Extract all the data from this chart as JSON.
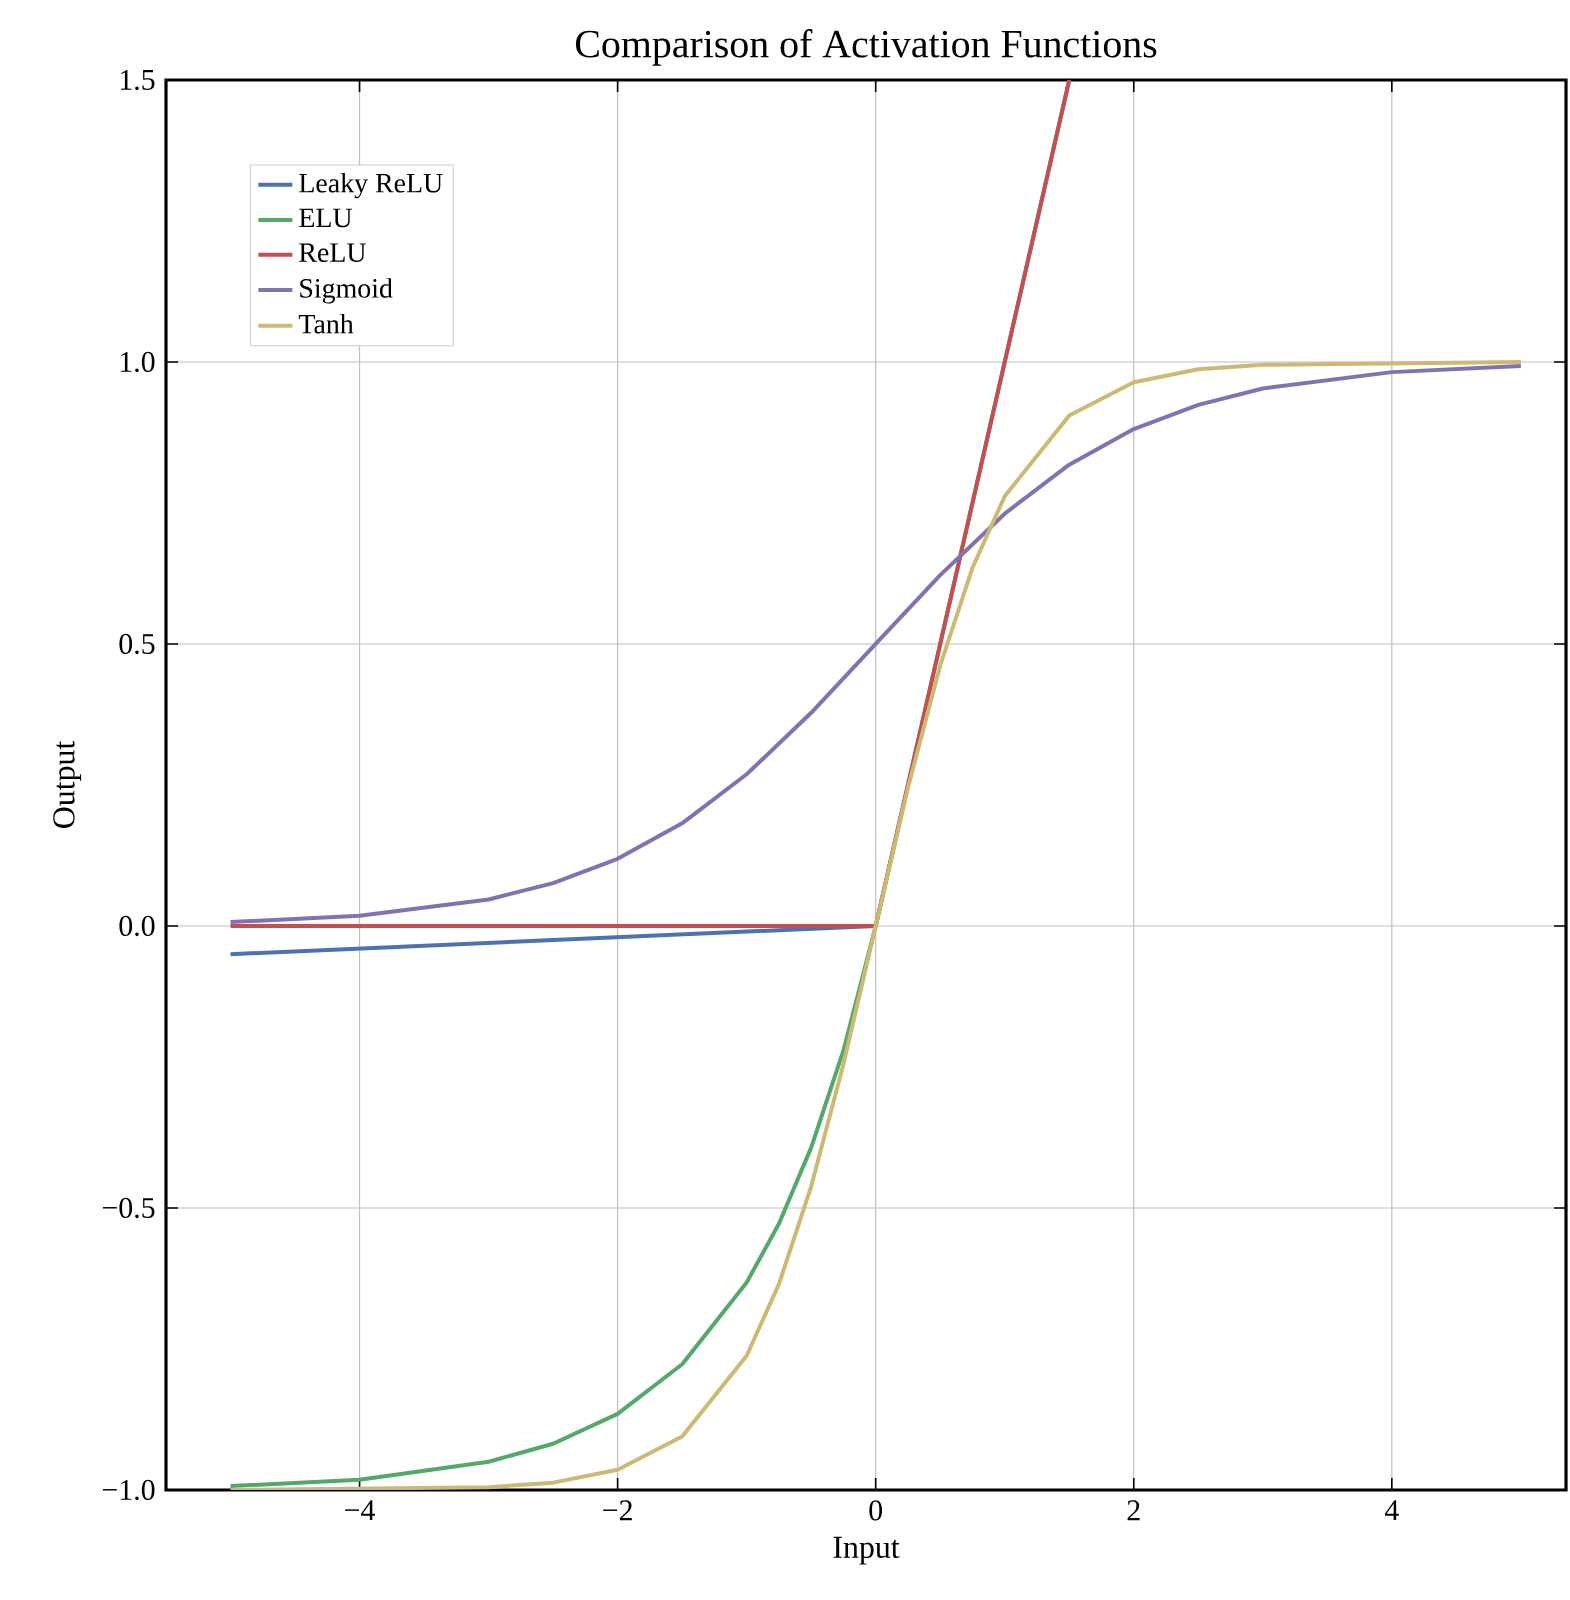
{
  "chart_data": {
    "type": "line",
    "title": "Comparison of Activation Functions",
    "xlabel": "Input",
    "ylabel": "Output",
    "xlim": [
      -5.5,
      5.35
    ],
    "ylim": [
      -1.0,
      1.5
    ],
    "xticks": [
      {
        "value": -4,
        "label": "−4"
      },
      {
        "value": -2,
        "label": "−2"
      },
      0,
      2,
      4
    ],
    "yticks": [
      {
        "value": -1.0,
        "label": "−1.0"
      },
      {
        "value": -0.5,
        "label": "−0.5"
      },
      {
        "value": 0.0,
        "label": "0.0"
      },
      0.5,
      {
        "value": 1.0,
        "label": "1.0"
      },
      1.5
    ],
    "grid": true,
    "legend": "top left",
    "series": [
      {
        "name": "Leaky ReLU",
        "color": "#4c72b0",
        "x": [
          -5,
          0
        ],
        "values": [
          -0.05,
          0
        ]
      },
      {
        "name": "ELU",
        "color": "#55a868",
        "x": [
          -5,
          -4,
          -3,
          -2.5,
          -2,
          -1.5,
          -1,
          -0.75,
          -0.5,
          -0.25,
          0,
          1.5
        ],
        "values": [
          -0.993,
          -0.982,
          -0.95,
          -0.918,
          -0.865,
          -0.777,
          -0.632,
          -0.528,
          -0.393,
          -0.221,
          0,
          1.5
        ]
      },
      {
        "name": "ReLU",
        "color": "#c44e52",
        "x": [
          -5,
          0,
          1.5
        ],
        "values": [
          0,
          0,
          1.5
        ]
      },
      {
        "name": "Sigmoid",
        "color": "#8172b2",
        "x": [
          -5,
          -4,
          -3,
          -2.5,
          -2,
          -1.5,
          -1,
          -0.5,
          0,
          0.5,
          1,
          1.5,
          2,
          2.5,
          3,
          4,
          5
        ],
        "values": [
          0.007,
          0.018,
          0.047,
          0.076,
          0.119,
          0.182,
          0.269,
          0.378,
          0.5,
          0.622,
          0.731,
          0.818,
          0.881,
          0.924,
          0.953,
          0.982,
          0.993
        ]
      },
      {
        "name": "Tanh",
        "color": "#ccb974",
        "x": [
          -5,
          -3,
          -2.5,
          -2,
          -1.5,
          -1,
          -0.75,
          -0.5,
          -0.25,
          0,
          0.25,
          0.5,
          0.75,
          1,
          1.5,
          2,
          2.5,
          3,
          5
        ],
        "values": [
          -1.0,
          -0.995,
          -0.987,
          -0.964,
          -0.905,
          -0.762,
          -0.635,
          -0.462,
          -0.245,
          0,
          0.245,
          0.462,
          0.635,
          0.762,
          0.905,
          0.964,
          0.987,
          0.995,
          1.0
        ]
      }
    ]
  }
}
